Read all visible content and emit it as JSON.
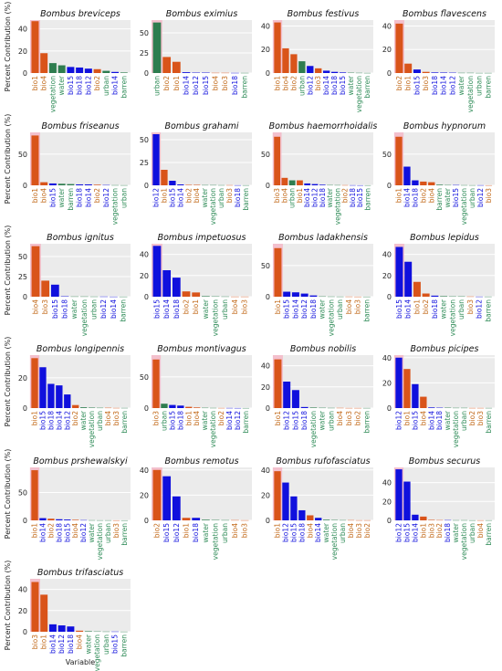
{
  "figure": {
    "ylabel": "Percent Contribution (%)",
    "xlabel": "Variable"
  },
  "colors": {
    "bio": "#d9541a",
    "bio_label": "#c26a1a",
    "bio_blue": "#1010dd",
    "env": "#2e7d4f",
    "env_label": "#2e8b57",
    "highlight": "#f4b8c8",
    "panel_bg": "#ebebeb",
    "grid": "#ffffff"
  },
  "chart_data": [
    {
      "type": "bar",
      "title": "Bombus breviceps",
      "ylim": [
        0,
        48
      ],
      "yticks": [
        0,
        20,
        40
      ],
      "categories": [
        "bio1",
        "bio4",
        "vegetation",
        "water",
        "bio15",
        "bio18",
        "bio12",
        "bio2",
        "urban",
        "bio14",
        "barren"
      ],
      "values": [
        47,
        18,
        9,
        7,
        5.5,
        5,
        4,
        3.5,
        2,
        1,
        0.5
      ],
      "groups": [
        "o",
        "o",
        "g",
        "g",
        "b",
        "b",
        "b",
        "o",
        "g",
        "b",
        "g"
      ]
    },
    {
      "type": "bar",
      "title": "Bombus eximius",
      "ylim": [
        0,
        66
      ],
      "yticks": [
        0,
        25,
        50
      ],
      "categories": [
        "urban",
        "bio2",
        "bio1",
        "bio14",
        "bio12",
        "bio15",
        "bio4",
        "bio3",
        "bio18",
        "barren"
      ],
      "values": [
        63,
        20,
        14,
        1,
        0.5,
        0.5,
        0.3,
        0.3,
        0.2,
        0.2
      ],
      "groups": [
        "g",
        "o",
        "o",
        "b",
        "b",
        "b",
        "o",
        "o",
        "b",
        "g"
      ]
    },
    {
      "type": "bar",
      "title": "Bombus festivus",
      "ylim": [
        0,
        45
      ],
      "yticks": [
        0,
        20,
        40
      ],
      "categories": [
        "bio1",
        "bio4",
        "bio2",
        "urban",
        "bio12",
        "bio3",
        "bio14",
        "bio18",
        "bio15",
        "water",
        "vegetation",
        "barren"
      ],
      "values": [
        43,
        21,
        16,
        10,
        6,
        4,
        2,
        1,
        0.5,
        0.3,
        0.2,
        0.1
      ],
      "groups": [
        "o",
        "o",
        "o",
        "g",
        "b",
        "o",
        "b",
        "b",
        "b",
        "g",
        "g",
        "g"
      ]
    },
    {
      "type": "bar",
      "title": "Bombus flavescens",
      "ylim": [
        0,
        45
      ],
      "yticks": [
        0,
        20,
        40
      ],
      "categories": [
        "bio2",
        "bio1",
        "bio15",
        "bio3",
        "bio18",
        "bio14",
        "bio12",
        "water",
        "vegetation",
        "urban",
        "barren"
      ],
      "values": [
        42,
        8,
        3,
        1,
        0.5,
        0.4,
        0.3,
        0.2,
        0.2,
        0.1,
        0.1
      ],
      "groups": [
        "o",
        "o",
        "b",
        "o",
        "b",
        "b",
        "b",
        "g",
        "g",
        "g",
        "g"
      ]
    },
    {
      "type": "bar",
      "title": "Bombus friseanus",
      "ylim": [
        0,
        85
      ],
      "yticks": [
        0,
        50
      ],
      "categories": [
        "bio1",
        "bio4",
        "bio15",
        "water",
        "barren",
        "bio18",
        "bio14",
        "bio2",
        "bio12",
        "vegetation",
        "urban"
      ],
      "values": [
        80,
        5,
        3,
        2.5,
        2,
        1.5,
        1.5,
        1,
        0.5,
        0.3,
        0.2
      ],
      "groups": [
        "o",
        "o",
        "b",
        "g",
        "g",
        "b",
        "b",
        "o",
        "b",
        "g",
        "g"
      ]
    },
    {
      "type": "bar",
      "title": "Bombus grahami",
      "ylim": [
        0,
        58
      ],
      "yticks": [
        0,
        25,
        50
      ],
      "categories": [
        "bio12",
        "bio1",
        "bio15",
        "bio14",
        "bio2",
        "bio4",
        "water",
        "vegetation",
        "urban",
        "bio3",
        "bio18",
        "barren"
      ],
      "values": [
        56,
        17,
        5,
        1,
        0.5,
        0.5,
        0.3,
        0.3,
        0.2,
        0.2,
        0.1,
        0.1
      ],
      "groups": [
        "b",
        "o",
        "b",
        "b",
        "o",
        "o",
        "g",
        "g",
        "g",
        "o",
        "b",
        "g"
      ]
    },
    {
      "type": "bar",
      "title": "Bombus haemorrhoidalis",
      "ylim": [
        0,
        85
      ],
      "yticks": [
        0,
        50
      ],
      "categories": [
        "bio3",
        "bio4",
        "urban",
        "bio1",
        "bio14",
        "bio12",
        "bio18",
        "water",
        "vegetation",
        "bio2",
        "bio18",
        "bio15",
        "barren"
      ],
      "values": [
        78,
        12,
        8,
        8,
        3,
        2,
        1,
        0.5,
        0.4,
        0.3,
        0.2,
        0.1,
        0.1
      ],
      "groups": [
        "o",
        "o",
        "g",
        "o",
        "b",
        "b",
        "b",
        "g",
        "g",
        "o",
        "b",
        "b",
        "g"
      ]
    },
    {
      "type": "bar",
      "title": "Bombus hypnorum",
      "ylim": [
        0,
        85
      ],
      "yticks": [
        0,
        50
      ],
      "categories": [
        "bio1",
        "bio14",
        "bio18",
        "bio2",
        "bio4",
        "barren",
        "water",
        "bio15",
        "vegetation",
        "urban",
        "bio12",
        "bio3"
      ],
      "values": [
        78,
        30,
        8,
        6,
        5,
        1,
        0.5,
        0.5,
        0.3,
        0.2,
        0.2,
        0.1
      ],
      "groups": [
        "o",
        "b",
        "b",
        "o",
        "o",
        "g",
        "g",
        "b",
        "g",
        "g",
        "b",
        "o"
      ]
    },
    {
      "type": "bar",
      "title": "Bombus ignitus",
      "ylim": [
        0,
        66
      ],
      "yticks": [
        0,
        25,
        50
      ],
      "categories": [
        "bio4",
        "bio3",
        "bio15",
        "bio18",
        "water",
        "vegetation",
        "urban",
        "bio12",
        "bio14",
        "barren"
      ],
      "values": [
        63,
        20,
        15,
        0.5,
        0.3,
        0.3,
        0.2,
        0.2,
        0.1,
        0.1
      ],
      "groups": [
        "o",
        "o",
        "b",
        "b",
        "g",
        "g",
        "g",
        "b",
        "b",
        "g"
      ]
    },
    {
      "type": "bar",
      "title": "Bombus impetuosus",
      "ylim": [
        0,
        50
      ],
      "yticks": [
        0,
        20,
        40
      ],
      "categories": [
        "bio15",
        "bio14",
        "bio18",
        "bio2",
        "bio1",
        "water",
        "vegetation",
        "urban",
        "bio4",
        "bio3"
      ],
      "values": [
        48,
        25,
        18,
        5,
        4,
        0.5,
        0.3,
        0.2,
        0.1,
        0.1
      ],
      "groups": [
        "b",
        "b",
        "b",
        "o",
        "o",
        "g",
        "g",
        "g",
        "o",
        "o"
      ]
    },
    {
      "type": "bar",
      "title": "Bombus ladakhensis",
      "ylim": [
        0,
        85
      ],
      "yticks": [
        0,
        50
      ],
      "categories": [
        "bio1",
        "bio15",
        "bio14",
        "bio12",
        "bio18",
        "water",
        "vegetation",
        "urban",
        "bio4",
        "bio3",
        "barren"
      ],
      "values": [
        78,
        8,
        7,
        5,
        2,
        0.5,
        0.3,
        0.2,
        0.2,
        0.1,
        0.1
      ],
      "groups": [
        "o",
        "b",
        "b",
        "b",
        "b",
        "g",
        "g",
        "g",
        "o",
        "o",
        "g"
      ]
    },
    {
      "type": "bar",
      "title": "Bombus lepidus",
      "ylim": [
        0,
        50
      ],
      "yticks": [
        0,
        20,
        40
      ],
      "categories": [
        "bio15",
        "bio14",
        "bio1",
        "bio2",
        "bio18",
        "water",
        "vegetation",
        "urban",
        "bio3",
        "bio12",
        "barren"
      ],
      "values": [
        47,
        33,
        14,
        3,
        1,
        0.5,
        0.3,
        0.3,
        0.2,
        0.1,
        0.1
      ],
      "groups": [
        "b",
        "b",
        "o",
        "o",
        "b",
        "g",
        "g",
        "g",
        "o",
        "b",
        "g"
      ]
    },
    {
      "type": "bar",
      "title": "Bombus longipennis",
      "ylim": [
        0,
        35
      ],
      "yticks": [
        0,
        20
      ],
      "categories": [
        "bio1",
        "bio15",
        "bio18",
        "bio14",
        "bio12",
        "bio2",
        "water",
        "vegetation",
        "urban",
        "bio4",
        "bio3",
        "barren"
      ],
      "values": [
        33,
        27,
        16,
        15,
        9,
        2,
        0.5,
        0.3,
        0.2,
        0.2,
        0.1,
        0.1
      ],
      "groups": [
        "o",
        "b",
        "b",
        "b",
        "b",
        "o",
        "g",
        "g",
        "g",
        "o",
        "o",
        "g"
      ]
    },
    {
      "type": "bar",
      "title": "Bombus montivagus",
      "ylim": [
        0,
        85
      ],
      "yticks": [
        0,
        50
      ],
      "categories": [
        "bio3",
        "urban",
        "bio15",
        "bio18",
        "bio1",
        "bio4",
        "water",
        "vegetation",
        "bio2",
        "bio14",
        "bio12",
        "barren"
      ],
      "values": [
        78,
        7,
        5,
        4,
        2,
        1,
        0.5,
        0.3,
        0.2,
        0.2,
        0.1,
        0.1
      ],
      "groups": [
        "o",
        "g",
        "b",
        "b",
        "o",
        "o",
        "g",
        "g",
        "o",
        "b",
        "b",
        "g"
      ]
    },
    {
      "type": "bar",
      "title": "Bombus nobilis",
      "ylim": [
        0,
        50
      ],
      "yticks": [
        0,
        20,
        40
      ],
      "categories": [
        "bio1",
        "bio12",
        "bio15",
        "bio18",
        "vegetation",
        "water",
        "urban",
        "bio4",
        "bio3",
        "bio2",
        "barren"
      ],
      "values": [
        46,
        25,
        17,
        1,
        0.5,
        0.3,
        0.2,
        0.2,
        0.1,
        0.1,
        0.1
      ],
      "groups": [
        "o",
        "b",
        "b",
        "b",
        "g",
        "g",
        "g",
        "o",
        "o",
        "o",
        "g"
      ]
    },
    {
      "type": "bar",
      "title": "Bombus picipes",
      "ylim": [
        0,
        42
      ],
      "yticks": [
        0,
        20,
        40
      ],
      "categories": [
        "bio12",
        "bio1",
        "bio15",
        "bio4",
        "bio14",
        "bio18",
        "water",
        "vegetation",
        "urban",
        "bio2",
        "bio3",
        "barren"
      ],
      "values": [
        40,
        31,
        19,
        9,
        0.5,
        0.3,
        0.3,
        0.2,
        0.2,
        0.1,
        0.1,
        0.1
      ],
      "groups": [
        "b",
        "o",
        "b",
        "o",
        "b",
        "b",
        "g",
        "g",
        "g",
        "o",
        "o",
        "g"
      ]
    },
    {
      "type": "bar",
      "title": "Bombus prshewalskyi",
      "ylim": [
        0,
        95
      ],
      "yticks": [
        0,
        50
      ],
      "categories": [
        "bio1",
        "bio14",
        "bio2",
        "bio18",
        "bio15",
        "bio4",
        "bio12",
        "water",
        "vegetation",
        "urban",
        "bio3",
        "barren"
      ],
      "values": [
        90,
        4,
        3,
        2,
        1.5,
        1,
        0.5,
        0.3,
        0.2,
        0.2,
        0.1,
        0.1
      ],
      "groups": [
        "o",
        "b",
        "o",
        "b",
        "b",
        "o",
        "b",
        "g",
        "g",
        "g",
        "o",
        "g"
      ]
    },
    {
      "type": "bar",
      "title": "Bombus remotus",
      "ylim": [
        0,
        42
      ],
      "yticks": [
        0,
        20,
        40
      ],
      "categories": [
        "bio2",
        "bio15",
        "bio12",
        "bio1",
        "bio18",
        "water",
        "vegetation",
        "urban",
        "bio4",
        "bio3"
      ],
      "values": [
        40,
        35,
        19,
        2,
        2,
        0.5,
        0.3,
        0.2,
        0.2,
        0.1
      ],
      "groups": [
        "o",
        "b",
        "b",
        "o",
        "b",
        "g",
        "g",
        "g",
        "o",
        "o"
      ]
    },
    {
      "type": "bar",
      "title": "Bombus rufofasciatus",
      "ylim": [
        0,
        42
      ],
      "yticks": [
        0,
        20,
        40
      ],
      "categories": [
        "bio1",
        "bio12",
        "bio15",
        "bio18",
        "bio4",
        "bio14",
        "water",
        "vegetation",
        "urban",
        "bio4",
        "bio3",
        "bio2"
      ],
      "values": [
        39,
        30,
        19,
        8,
        4,
        2,
        0.5,
        0.3,
        0.2,
        0.2,
        0.1,
        0.1
      ],
      "groups": [
        "o",
        "b",
        "b",
        "b",
        "o",
        "b",
        "g",
        "g",
        "g",
        "o",
        "o",
        "o"
      ]
    },
    {
      "type": "bar",
      "title": "Bombus securus",
      "ylim": [
        0,
        56
      ],
      "yticks": [
        0,
        20,
        40
      ],
      "categories": [
        "bio12",
        "bio15",
        "bio14",
        "bio1",
        "bio3",
        "bio2",
        "bio18",
        "water",
        "vegetation",
        "urban",
        "bio4",
        "barren"
      ],
      "values": [
        54,
        41,
        6,
        4,
        0.5,
        0.3,
        0.3,
        0.2,
        0.2,
        0.1,
        0.1,
        0.1
      ],
      "groups": [
        "b",
        "b",
        "b",
        "o",
        "o",
        "o",
        "b",
        "g",
        "g",
        "g",
        "o",
        "g"
      ]
    },
    {
      "type": "bar",
      "title": "Bombus trifasciatus",
      "ylim": [
        0,
        50
      ],
      "yticks": [
        0,
        20,
        40
      ],
      "categories": [
        "bio3",
        "bio1",
        "bio14",
        "bio12",
        "bio18",
        "bio4",
        "water",
        "vegetation",
        "urban",
        "bio15",
        "barren"
      ],
      "values": [
        47,
        35,
        7,
        6,
        5,
        1,
        0.5,
        0.3,
        0.2,
        0.2,
        0.1
      ],
      "groups": [
        "o",
        "o",
        "b",
        "b",
        "b",
        "o",
        "g",
        "g",
        "g",
        "b",
        "g"
      ]
    }
  ]
}
